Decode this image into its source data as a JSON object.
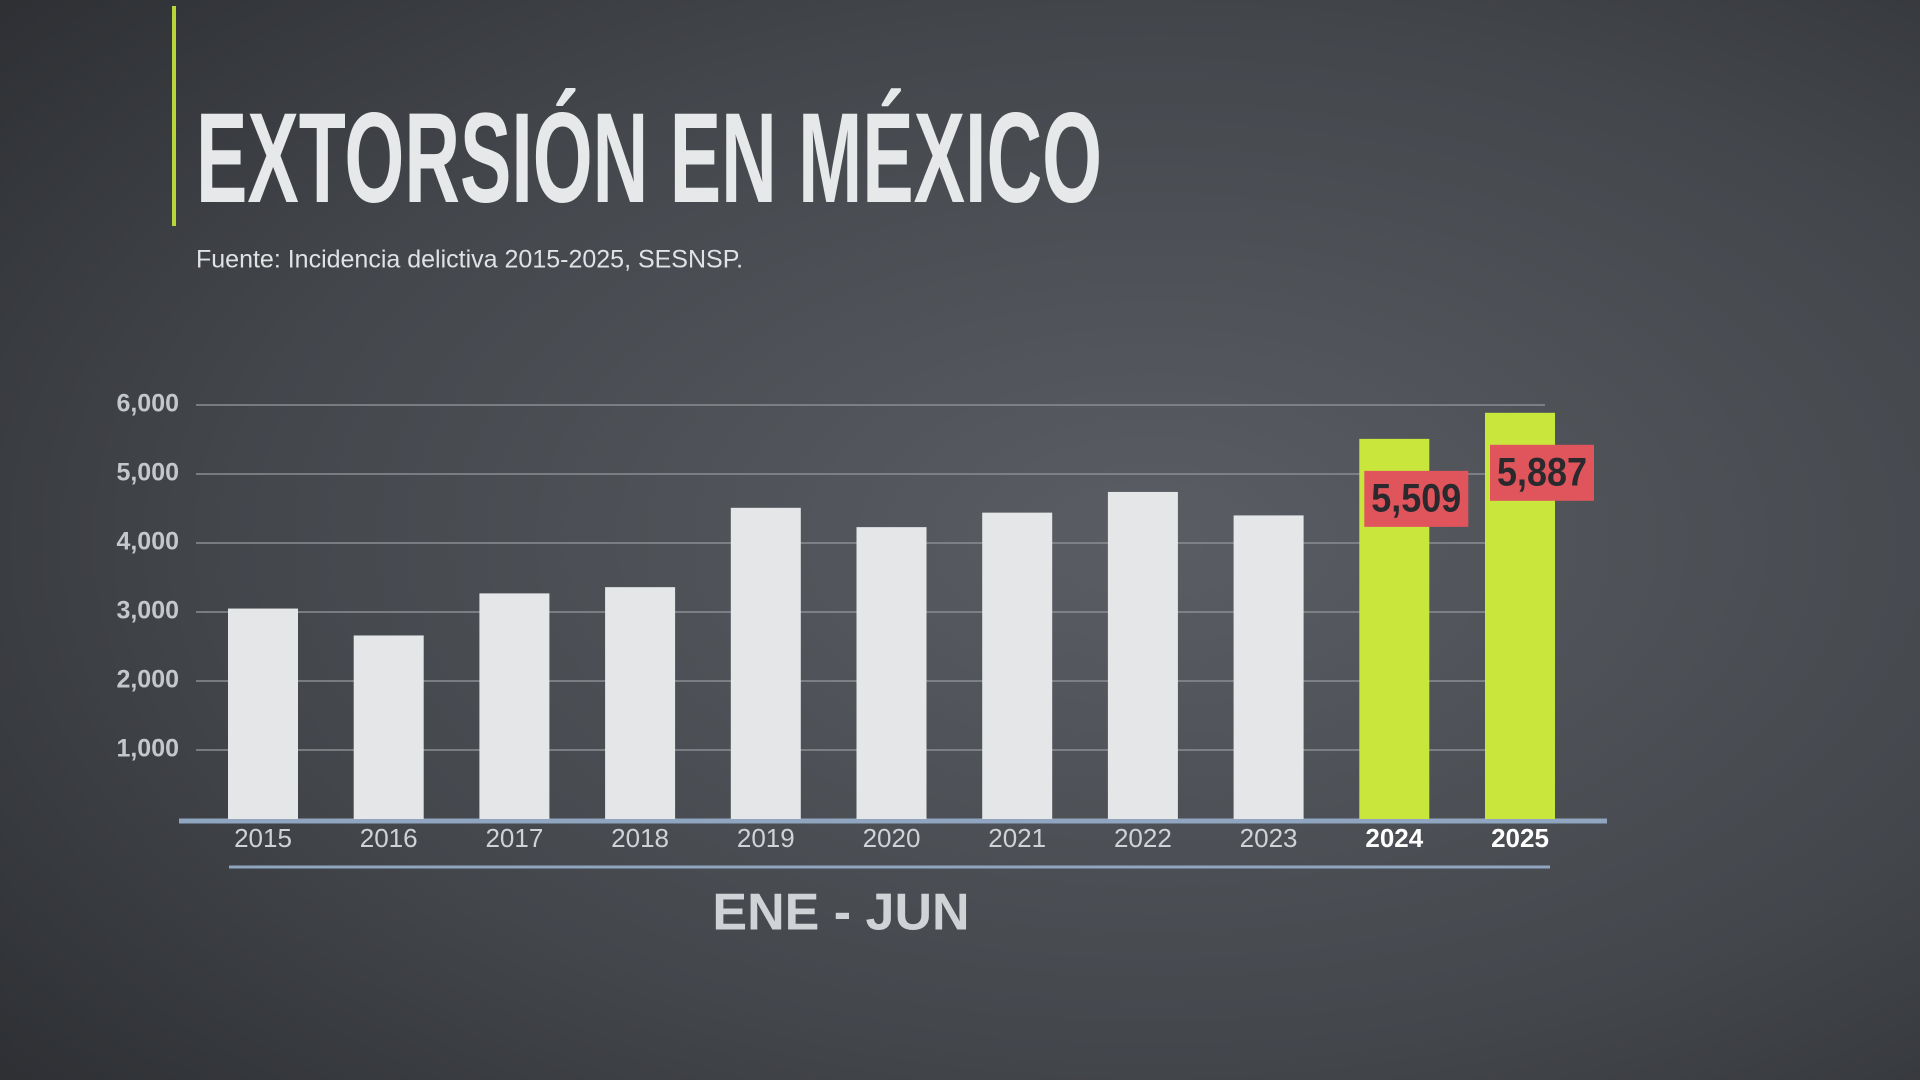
{
  "chart_data": {
    "type": "bar",
    "title": "EXTORSIÓN EN MÉXICO",
    "subtitle": "Fuente: Incidencia delictiva 2015-2025, SESNSP.",
    "x_label": "ENE - JUN",
    "categories": [
      "2015",
      "2016",
      "2017",
      "2018",
      "2019",
      "2020",
      "2021",
      "2022",
      "2023",
      "2024",
      "2025"
    ],
    "values": [
      3050,
      2660,
      3270,
      3360,
      4510,
      4230,
      4440,
      4740,
      4400,
      5509,
      5887
    ],
    "value_labels": [
      null,
      null,
      null,
      null,
      null,
      null,
      null,
      null,
      null,
      "5,509",
      "5,887"
    ],
    "colors": [
      "#e4e6e8",
      "#e4e6e8",
      "#e4e6e8",
      "#e4e6e8",
      "#e4e6e8",
      "#e4e6e8",
      "#e4e6e8",
      "#e4e6e8",
      "#e4e6e8",
      "#c8e63c",
      "#c8e63c"
    ],
    "label_color": "#e0555c",
    "ylim": [
      0,
      6000
    ],
    "yticks": [
      {
        "value": 1000,
        "label": "1,000"
      },
      {
        "value": 2000,
        "label": "2,000"
      },
      {
        "value": 3000,
        "label": "3,000"
      },
      {
        "value": 4000,
        "label": "4,000"
      },
      {
        "value": 5000,
        "label": "5,000"
      },
      {
        "value": 6000,
        "label": "6,000"
      }
    ],
    "grid": true
  }
}
